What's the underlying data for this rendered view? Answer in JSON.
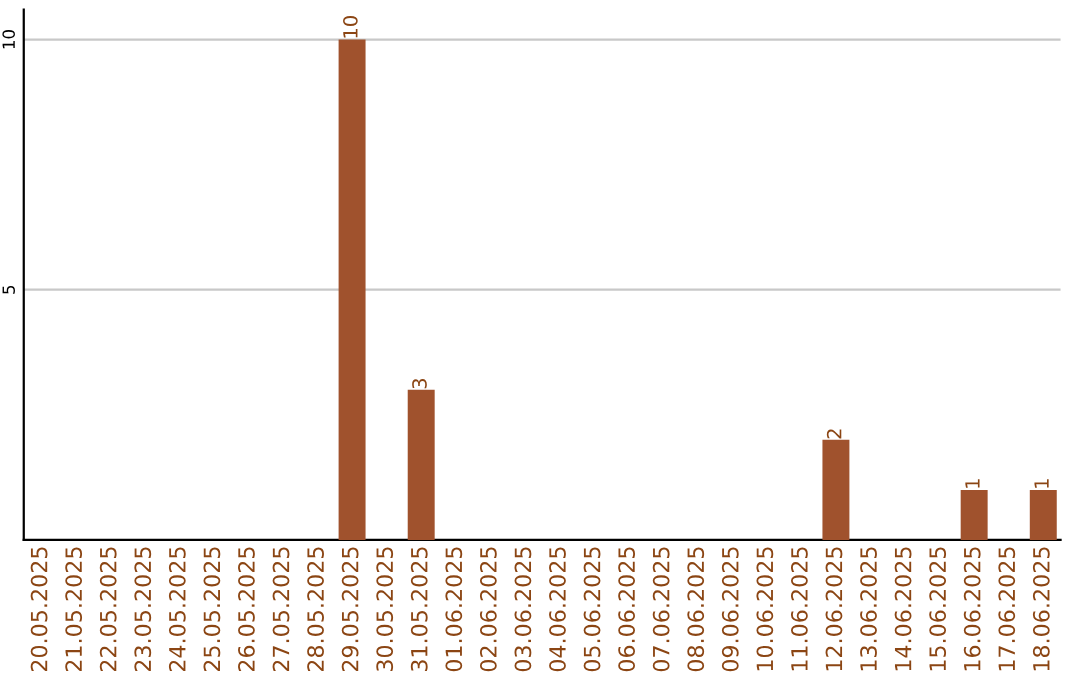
{
  "chart_data": {
    "type": "bar",
    "categories": [
      "20.05.2025",
      "21.05.2025",
      "22.05.2025",
      "23.05.2025",
      "24.05.2025",
      "25.05.2025",
      "26.05.2025",
      "27.05.2025",
      "28.05.2025",
      "29.05.2025",
      "30.05.2025",
      "31.05.2025",
      "01.06.2025",
      "02.06.2025",
      "03.06.2025",
      "04.06.2025",
      "05.06.2025",
      "06.06.2025",
      "07.06.2025",
      "08.06.2025",
      "09.06.2025",
      "10.06.2025",
      "11.06.2025",
      "12.06.2025",
      "13.06.2025",
      "14.06.2025",
      "15.06.2025",
      "16.06.2025",
      "17.06.2025",
      "18.06.2025"
    ],
    "values": [
      0,
      0,
      0,
      0,
      0,
      0,
      0,
      0,
      0,
      10,
      0,
      3,
      0,
      0,
      0,
      0,
      0,
      0,
      0,
      0,
      0,
      0,
      0,
      2,
      0,
      0,
      0,
      1,
      0,
      1
    ],
    "value_labels": [
      null,
      null,
      null,
      null,
      null,
      null,
      null,
      null,
      null,
      "10",
      null,
      "3",
      null,
      null,
      null,
      null,
      null,
      null,
      null,
      null,
      null,
      null,
      null,
      "2",
      null,
      null,
      null,
      "1",
      null,
      "1"
    ],
    "color": "#a0522d",
    "ylim": [
      0,
      10.6
    ],
    "yticks": [
      5,
      10
    ],
    "grid": "y"
  }
}
